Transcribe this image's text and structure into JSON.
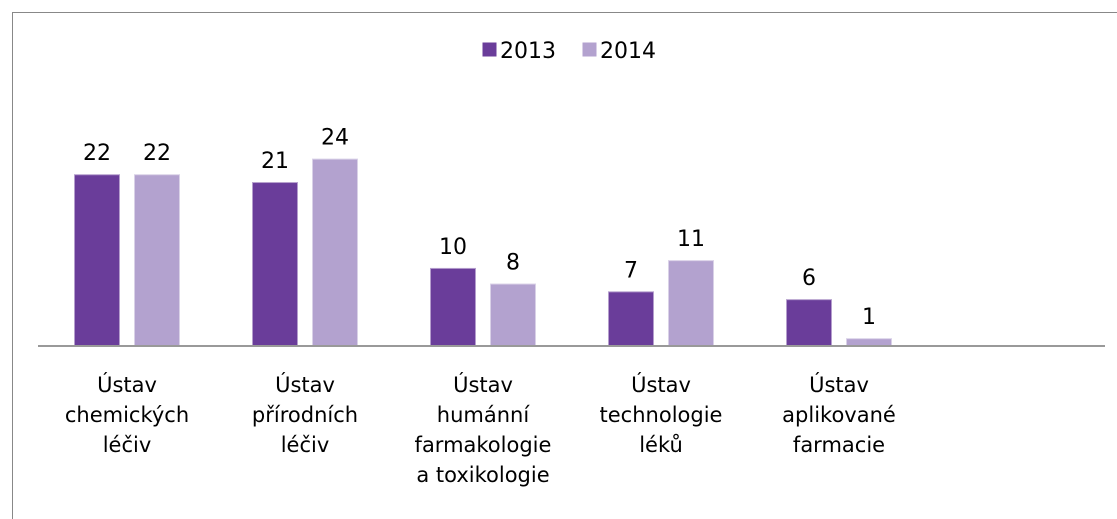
{
  "chart_data": {
    "type": "bar",
    "categories": [
      "Ústav chemických léčiv",
      "Ústav přírodních léčiv",
      "Ústav humánní farmakologie a toxikologie",
      "Ústav technologie léků",
      "Ústav aplikované farmacie"
    ],
    "series": [
      {
        "name": "2013",
        "color": "#6a3d9a",
        "values": [
          22,
          21,
          10,
          7,
          6
        ]
      },
      {
        "name": "2014",
        "color": "#b3a2cf",
        "values": [
          22,
          24,
          8,
          11,
          1
        ]
      }
    ],
    "ylim": [
      0,
      26
    ]
  }
}
